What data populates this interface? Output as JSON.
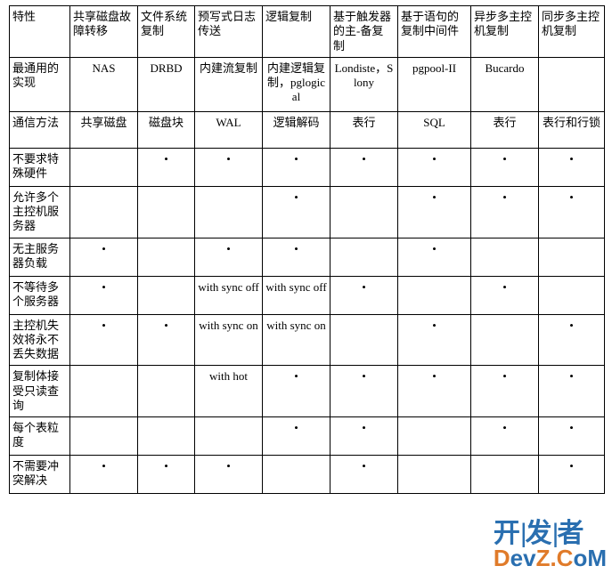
{
  "columns": [
    "特性",
    "共享磁盘故障转移",
    "文件系统复制",
    "预写式日志传送",
    "逻辑复制",
    "基于触发器的主-备复制",
    "基于语句的复制中间件",
    "异步多主控机复制",
    "同步多主控机复制"
  ],
  "rows": {
    "impl": {
      "label": "最通用的实现",
      "cells": [
        "NAS",
        "DRBD",
        "内建流复制",
        "内建逻辑复制，pglogical",
        "Londiste，Slony",
        "pgpool-II",
        "Bucardo",
        ""
      ]
    },
    "comm": {
      "label": "通信方法",
      "cells": [
        "共享磁盘",
        "磁盘块",
        "WAL",
        "逻辑解码",
        "表行",
        "SQL",
        "表行",
        "表行和行锁"
      ]
    },
    "r3": {
      "label": "不要求特殊硬件",
      "cells": [
        "",
        "•",
        "•",
        "•",
        "•",
        "•",
        "•",
        "•"
      ]
    },
    "r4": {
      "label": "允许多个主控机服务器",
      "cells": [
        "",
        "",
        "",
        "•",
        "",
        "•",
        "•",
        "•"
      ]
    },
    "r5": {
      "label": "无主服务器负载",
      "cells": [
        "•",
        "",
        "•",
        "•",
        "",
        "•",
        "",
        ""
      ]
    },
    "r6": {
      "label": "不等待多个服务器",
      "cells": [
        "•",
        "",
        "with sync off",
        "with sync off",
        "•",
        "",
        "•",
        ""
      ]
    },
    "r7": {
      "label": "主控机失效将永不丢失数据",
      "cells": [
        "•",
        "•",
        "with sync on",
        "with sync on",
        "",
        "•",
        "",
        "•"
      ]
    },
    "r8": {
      "label": "复制体接受只读查询",
      "cells": [
        "",
        "",
        "with hot",
        "•",
        "•",
        "•",
        "•",
        "•"
      ]
    },
    "r9": {
      "label": "每个表粒度",
      "cells": [
        "",
        "",
        "",
        "•",
        "•",
        "",
        "•",
        "•"
      ]
    },
    "r10": {
      "label": "不需要冲突解决",
      "cells": [
        "•",
        "•",
        "•",
        "",
        "•",
        "",
        "",
        "•"
      ]
    }
  },
  "watermark": {
    "top_a": "开",
    "top_b": "发",
    "top_c": "者",
    "bottom_pre": "D",
    "bottom_mid": "ev",
    "bottom_z": "Z.",
    "bottom_c": "C",
    "bottom_om": "oM"
  }
}
